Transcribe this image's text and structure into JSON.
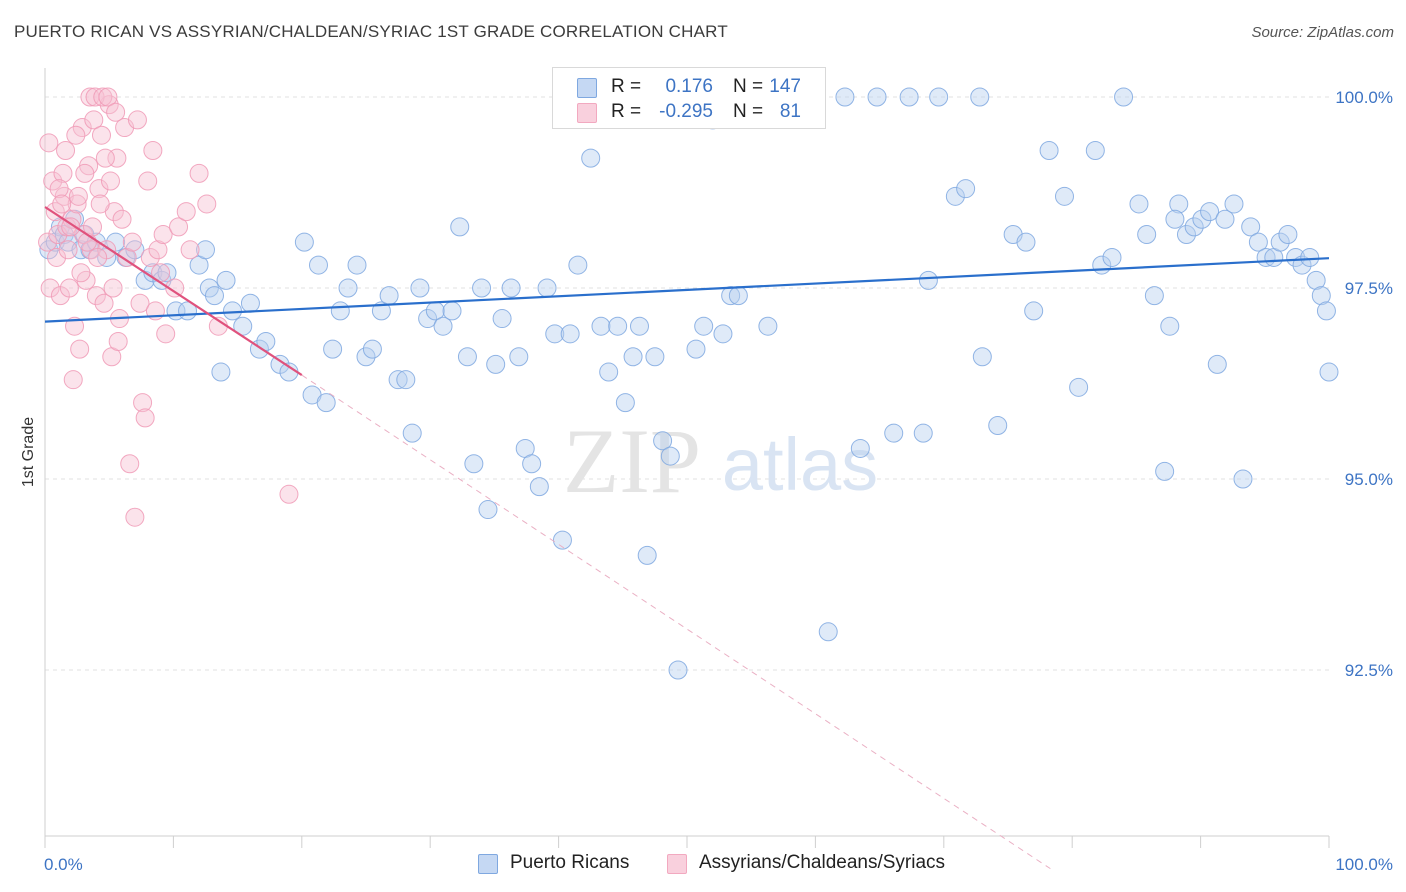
{
  "title": "PUERTO RICAN VS ASSYRIAN/CHALDEAN/SYRIAC 1ST GRADE CORRELATION CHART",
  "source": "Source: ZipAtlas.com",
  "watermark": {
    "zip": "ZIP",
    "atlas": "atlas"
  },
  "legend_top": [
    {
      "r_label": "R =",
      "r_value": "0.176",
      "n_label": "N =",
      "n_value": "147",
      "color": "#9bbbe8"
    },
    {
      "r_label": "R =",
      "r_value": "-0.295",
      "n_label": "N =",
      "n_value": "81",
      "color": "#f2a9c0"
    }
  ],
  "legend_bottom": [
    {
      "label": "Puerto Ricans",
      "color": "#9bbbe8"
    },
    {
      "label": "Assyrians/Chaldeans/Syriacs",
      "color": "#f2a9c0"
    }
  ],
  "chart_data": {
    "type": "scatter",
    "title": "PUERTO RICAN VS ASSYRIAN/CHALDEAN/SYRIAC 1ST GRADE CORRELATION CHART",
    "xlabel": "",
    "ylabel": "1st Grade",
    "xlim": [
      0,
      100
    ],
    "ylim": [
      90.2,
      100.5
    ],
    "x_tick_labels": [
      "0.0%",
      "100.0%"
    ],
    "y_ticks": [
      {
        "value": 100.0,
        "label": "100.0%"
      },
      {
        "value": 97.5,
        "label": "97.5%"
      },
      {
        "value": 95.0,
        "label": "95.0%"
      },
      {
        "value": 92.5,
        "label": "92.5%"
      }
    ],
    "grid": true,
    "legend_position": "bottom",
    "series": [
      {
        "name": "Puerto Ricans",
        "color": "#7fa8e0",
        "line_color": "#2a6fcc",
        "trend": {
          "x": [
            0,
            100
          ],
          "y": [
            97.06,
            97.89
          ]
        },
        "points": [
          [
            0.3,
            98.0
          ],
          [
            0.8,
            98.1
          ],
          [
            1.2,
            98.3
          ],
          [
            1.5,
            98.2
          ],
          [
            1.8,
            98.1
          ],
          [
            2.3,
            98.4
          ],
          [
            2.8,
            98.0
          ],
          [
            3.1,
            98.2
          ],
          [
            3.5,
            98.0
          ],
          [
            4.0,
            98.1
          ],
          [
            4.8,
            97.9
          ],
          [
            5.5,
            98.1
          ],
          [
            6.3,
            97.9
          ],
          [
            7.0,
            98.0
          ],
          [
            7.8,
            97.6
          ],
          [
            8.4,
            97.7
          ],
          [
            9.1,
            97.6
          ],
          [
            9.5,
            97.7
          ],
          [
            10.2,
            97.2
          ],
          [
            11.1,
            97.2
          ],
          [
            12.0,
            97.8
          ],
          [
            12.5,
            98.0
          ],
          [
            12.8,
            97.5
          ],
          [
            13.2,
            97.4
          ],
          [
            13.7,
            96.4
          ],
          [
            14.1,
            97.6
          ],
          [
            14.6,
            97.2
          ],
          [
            15.4,
            97.0
          ],
          [
            16.0,
            97.3
          ],
          [
            16.7,
            96.7
          ],
          [
            17.2,
            96.8
          ],
          [
            18.3,
            96.5
          ],
          [
            19.0,
            96.4
          ],
          [
            20.2,
            98.1
          ],
          [
            20.8,
            96.1
          ],
          [
            21.3,
            97.8
          ],
          [
            21.9,
            96.0
          ],
          [
            22.4,
            96.7
          ],
          [
            23.0,
            97.2
          ],
          [
            23.6,
            97.5
          ],
          [
            24.3,
            97.8
          ],
          [
            25.0,
            96.6
          ],
          [
            25.5,
            96.7
          ],
          [
            26.2,
            97.2
          ],
          [
            26.8,
            97.4
          ],
          [
            27.5,
            96.3
          ],
          [
            28.1,
            96.3
          ],
          [
            28.6,
            95.6
          ],
          [
            29.2,
            97.5
          ],
          [
            29.8,
            97.1
          ],
          [
            30.4,
            97.2
          ],
          [
            31.0,
            97.0
          ],
          [
            31.7,
            97.2
          ],
          [
            32.3,
            98.3
          ],
          [
            32.9,
            96.6
          ],
          [
            33.4,
            95.2
          ],
          [
            34.0,
            97.5
          ],
          [
            34.5,
            94.6
          ],
          [
            35.1,
            96.5
          ],
          [
            35.6,
            97.1
          ],
          [
            36.3,
            97.5
          ],
          [
            36.9,
            96.6
          ],
          [
            37.4,
            95.4
          ],
          [
            37.9,
            95.2
          ],
          [
            38.5,
            94.9
          ],
          [
            39.1,
            97.5
          ],
          [
            39.7,
            96.9
          ],
          [
            40.3,
            94.2
          ],
          [
            40.9,
            96.9
          ],
          [
            41.5,
            97.8
          ],
          [
            42.0,
            100.0
          ],
          [
            42.5,
            99.2
          ],
          [
            43.3,
            97.0
          ],
          [
            43.9,
            96.4
          ],
          [
            44.6,
            97.0
          ],
          [
            45.2,
            96.0
          ],
          [
            45.8,
            96.6
          ],
          [
            46.3,
            97.0
          ],
          [
            46.9,
            94.0
          ],
          [
            47.5,
            96.6
          ],
          [
            48.1,
            95.5
          ],
          [
            48.7,
            95.3
          ],
          [
            49.3,
            92.5
          ],
          [
            50.0,
            100.0
          ],
          [
            50.7,
            96.7
          ],
          [
            51.3,
            97.0
          ],
          [
            52.0,
            99.7
          ],
          [
            52.8,
            96.9
          ],
          [
            53.4,
            97.4
          ],
          [
            54.0,
            97.4
          ],
          [
            55.0,
            100.0
          ],
          [
            56.3,
            97.0
          ],
          [
            57.5,
            100.0
          ],
          [
            58.6,
            100.0
          ],
          [
            59.8,
            100.0
          ],
          [
            61.0,
            93.0
          ],
          [
            62.3,
            100.0
          ],
          [
            63.5,
            95.4
          ],
          [
            64.8,
            100.0
          ],
          [
            66.1,
            95.6
          ],
          [
            67.3,
            100.0
          ],
          [
            68.4,
            95.6
          ],
          [
            68.8,
            97.6
          ],
          [
            69.6,
            100.0
          ],
          [
            70.9,
            98.7
          ],
          [
            71.7,
            98.8
          ],
          [
            72.8,
            100.0
          ],
          [
            74.2,
            95.7
          ],
          [
            75.4,
            98.2
          ],
          [
            76.4,
            98.1
          ],
          [
            77.0,
            97.2
          ],
          [
            78.2,
            99.3
          ],
          [
            79.4,
            98.7
          ],
          [
            80.5,
            96.2
          ],
          [
            81.8,
            99.3
          ],
          [
            82.3,
            97.8
          ],
          [
            83.1,
            97.9
          ],
          [
            84.0,
            100.0
          ],
          [
            85.2,
            98.6
          ],
          [
            85.8,
            98.2
          ],
          [
            86.4,
            97.4
          ],
          [
            87.2,
            95.1
          ],
          [
            87.6,
            97.0
          ],
          [
            88.3,
            98.6
          ],
          [
            88.9,
            98.2
          ],
          [
            89.5,
            98.3
          ],
          [
            90.1,
            98.4
          ],
          [
            90.7,
            98.5
          ],
          [
            91.3,
            96.5
          ],
          [
            91.9,
            98.4
          ],
          [
            92.6,
            98.6
          ],
          [
            93.3,
            95.0
          ],
          [
            93.9,
            98.3
          ],
          [
            94.5,
            98.1
          ],
          [
            95.1,
            97.9
          ],
          [
            95.7,
            97.9
          ],
          [
            96.2,
            98.1
          ],
          [
            96.8,
            98.2
          ],
          [
            97.4,
            97.9
          ],
          [
            97.9,
            97.8
          ],
          [
            98.5,
            97.9
          ],
          [
            99.0,
            97.6
          ],
          [
            99.4,
            97.4
          ],
          [
            99.8,
            97.2
          ],
          [
            100.0,
            96.4
          ],
          [
            88.0,
            98.4
          ],
          [
            73.0,
            96.6
          ]
        ]
      },
      {
        "name": "Assyrians/Chaldeans/Syriacs",
        "color": "#f4a3bd",
        "line_color": "#e0527d",
        "trend": {
          "x": [
            0,
            20
          ],
          "y": [
            98.56,
            96.36
          ]
        },
        "trend_dashed": {
          "x": [
            20,
            78.3
          ],
          "y": [
            96.36,
            89.9
          ]
        },
        "points": [
          [
            0.2,
            98.1
          ],
          [
            0.4,
            97.5
          ],
          [
            0.6,
            98.9
          ],
          [
            0.8,
            98.5
          ],
          [
            1.0,
            98.2
          ],
          [
            1.2,
            97.4
          ],
          [
            1.4,
            99.0
          ],
          [
            1.5,
            98.7
          ],
          [
            1.7,
            98.3
          ],
          [
            1.9,
            97.5
          ],
          [
            2.1,
            98.4
          ],
          [
            2.3,
            97.0
          ],
          [
            2.5,
            98.6
          ],
          [
            2.7,
            96.7
          ],
          [
            2.9,
            99.6
          ],
          [
            3.0,
            98.2
          ],
          [
            3.2,
            97.6
          ],
          [
            3.4,
            99.1
          ],
          [
            3.6,
            98.0
          ],
          [
            3.8,
            99.7
          ],
          [
            4.0,
            97.4
          ],
          [
            4.2,
            98.8
          ],
          [
            4.4,
            99.5
          ],
          [
            4.6,
            97.3
          ],
          [
            4.8,
            98.0
          ],
          [
            5.0,
            99.9
          ],
          [
            5.2,
            96.6
          ],
          [
            5.4,
            98.5
          ],
          [
            5.6,
            99.2
          ],
          [
            5.8,
            97.1
          ],
          [
            6.0,
            98.4
          ],
          [
            6.2,
            99.6
          ],
          [
            6.4,
            97.9
          ],
          [
            6.6,
            95.2
          ],
          [
            6.8,
            98.1
          ],
          [
            7.0,
            94.5
          ],
          [
            7.2,
            99.7
          ],
          [
            7.4,
            97.3
          ],
          [
            7.6,
            96.0
          ],
          [
            7.8,
            95.8
          ],
          [
            8.0,
            98.9
          ],
          [
            8.2,
            97.9
          ],
          [
            8.4,
            99.3
          ],
          [
            8.6,
            97.2
          ],
          [
            8.8,
            98.0
          ],
          [
            9.0,
            97.7
          ],
          [
            9.2,
            98.2
          ],
          [
            9.4,
            96.9
          ],
          [
            0.3,
            99.4
          ],
          [
            0.9,
            97.9
          ],
          [
            1.1,
            98.8
          ],
          [
            1.3,
            98.6
          ],
          [
            1.6,
            99.3
          ],
          [
            1.8,
            98.0
          ],
          [
            2.0,
            98.3
          ],
          [
            2.2,
            96.3
          ],
          [
            2.4,
            99.5
          ],
          [
            2.6,
            98.7
          ],
          [
            2.8,
            97.7
          ],
          [
            3.1,
            99.0
          ],
          [
            3.3,
            98.1
          ],
          [
            3.5,
            100.0
          ],
          [
            3.7,
            98.3
          ],
          [
            3.9,
            100.0
          ],
          [
            4.1,
            97.9
          ],
          [
            4.3,
            98.6
          ],
          [
            4.5,
            100.0
          ],
          [
            4.7,
            99.2
          ],
          [
            4.9,
            100.0
          ],
          [
            5.1,
            98.9
          ],
          [
            5.3,
            97.5
          ],
          [
            5.5,
            99.8
          ],
          [
            5.7,
            96.8
          ],
          [
            12.0,
            99.0
          ],
          [
            10.4,
            98.3
          ],
          [
            11.0,
            98.5
          ],
          [
            12.6,
            98.6
          ],
          [
            13.5,
            97.0
          ],
          [
            19.0,
            94.8
          ],
          [
            10.1,
            97.5
          ],
          [
            11.3,
            98.0
          ]
        ]
      }
    ]
  }
}
